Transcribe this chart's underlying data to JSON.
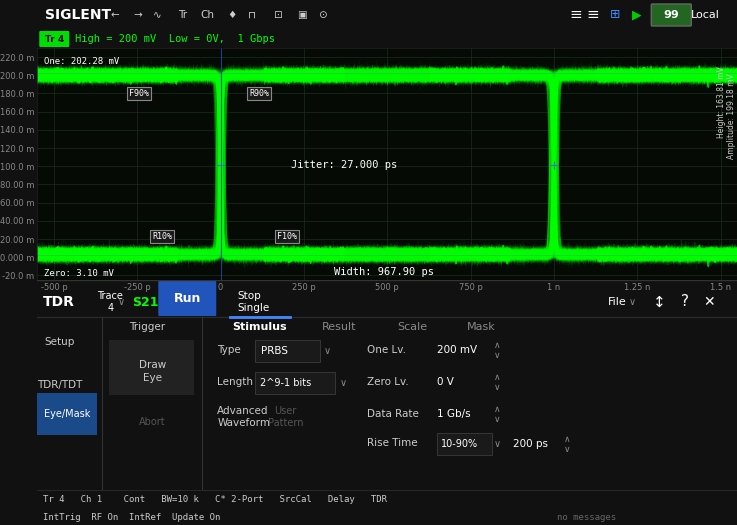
{
  "bg_dark": "#111111",
  "bg_scope": "#050a05",
  "bg_panel": "#141414",
  "green_bright": "#00ff00",
  "green_glow": "#33ff33",
  "green_dim": "#004400",
  "blue_run": "#2255bb",
  "blue_eye": "#1a4a8a",
  "white_text": "#ffffff",
  "gray_text": "#888888",
  "light_gray": "#cccccc",
  "grid_color": "#1a2e1a",
  "siglent_logo": "SIGLENT",
  "header_text": "High = 200 mV  Low = 0V,  1 Gbps",
  "one_label": "One: 202.28 mV",
  "zero_label": "Zero: 3.10 mV",
  "jitter_label": "Jitter: 27.000 ps",
  "width_label": "Width: 967.90 ps",
  "height_label": "Height: 163.81 mV",
  "amplitude_label": "Amplitude: 199.18 mV",
  "y_labels": [
    "220.0 m",
    "200.0 m",
    "180.0 m",
    "160.0 m",
    "140.0 m",
    "120.0 m",
    "100.0 m",
    "80.00 m",
    "60.00 m",
    "40.00 m",
    "20.00 m",
    "0.000 m",
    "-20.0 m"
  ],
  "y_values": [
    0.22,
    0.2,
    0.18,
    0.16,
    0.14,
    0.12,
    0.1,
    0.08,
    0.06,
    0.04,
    0.02,
    0.0,
    -0.02
  ],
  "x_labels": [
    "-500 p",
    "-250 p",
    "0",
    "250 p",
    "500 p",
    "750 p",
    "1 n",
    "1.25 n",
    "1.5 n"
  ],
  "x_values": [
    -500,
    -250,
    0,
    250,
    500,
    750,
    1000,
    1250,
    1500
  ],
  "ylim": [
    -0.025,
    0.23
  ],
  "xlim": [
    -550,
    1550
  ],
  "high": 0.2,
  "low": 0.003,
  "bit_period": 1000,
  "bottom_left1": "Tr 4   Ch 1    Cont   BW=10 k   C* 2-Port   SrcCal   Delay   TDR",
  "bottom_left2": "IntTrig  RF On  IntRef  Update On",
  "bottom_right2": "no messages"
}
